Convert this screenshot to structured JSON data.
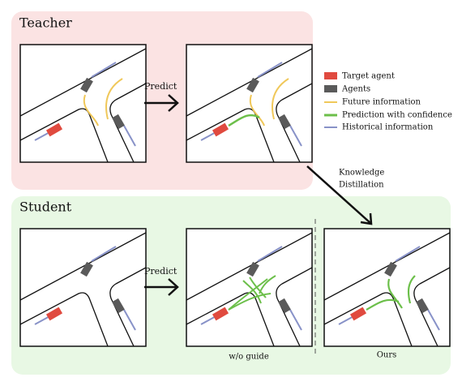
{
  "teacher": {
    "title": "Teacher",
    "predict": "Predict"
  },
  "student": {
    "title": "Student",
    "predict": "Predict",
    "captions": [
      "w/o guide",
      "Ours"
    ]
  },
  "legend": [
    "Target agent",
    "Agents",
    "Future information",
    "Prediction with confidence",
    "Historical information"
  ],
  "distillation": [
    "Knowledge",
    "Distillation"
  ]
}
